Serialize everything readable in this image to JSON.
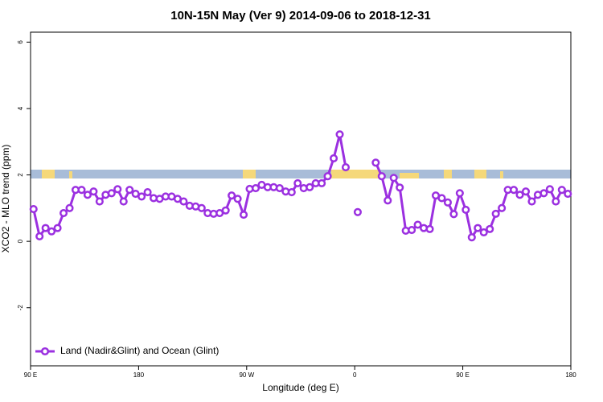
{
  "chart_data": {
    "type": "line",
    "title": "10N-15N May (Ver 9)   2014-09-06 to 2018-12-31",
    "xlabel": "Longitude (deg E)",
    "ylabel": "XCO2 - MLO trend (ppm)",
    "xlim": [
      90,
      540
    ],
    "xticks": [
      {
        "value": 90,
        "label": "90 E"
      },
      180,
      {
        "value": 270,
        "label": "90 W"
      },
      {
        "value": 360,
        "label": "0"
      },
      {
        "value": 450,
        "label": "90 E"
      },
      {
        "value": 540,
        "label": "180"
      }
    ],
    "ylim": [
      -3.75,
      6.3
    ],
    "yticks": [
      -2,
      0,
      2,
      4,
      6
    ],
    "legend": "bottom-left",
    "x": [
      92.5,
      97.5,
      102.5,
      107.5,
      112.5,
      117.5,
      122.5,
      127.5,
      132.5,
      137.5,
      142.5,
      147.5,
      152.5,
      157.5,
      162.5,
      167.5,
      172.5,
      177.5,
      182.5,
      187.5,
      192.5,
      197.5,
      202.5,
      207.5,
      212.5,
      217.5,
      222.5,
      227.5,
      232.5,
      237.5,
      242.5,
      247.5,
      252.5,
      257.5,
      262.5,
      267.5,
      272.5,
      277.5,
      282.5,
      287.5,
      292.5,
      297.5,
      302.5,
      307.5,
      312.5,
      317.5,
      322.5,
      327.5,
      332.5,
      337.5,
      342.5,
      347.5,
      352.5,
      357.5,
      362.5,
      367.5,
      372.5,
      377.5,
      382.5,
      387.5,
      392.5,
      397.5,
      402.5,
      407.5,
      412.5,
      417.5,
      422.5,
      427.5,
      432.5,
      437.5,
      442.5,
      447.5,
      452.5,
      457.5,
      462.5,
      467.5,
      472.5,
      477.5,
      482.5,
      487.5,
      492.5,
      497.5,
      502.5,
      507.5,
      512.5,
      517.5,
      522.5,
      527.5,
      532.5,
      537.5
    ],
    "series": [
      {
        "name": "Land (Nadir&Glint) and Ocean (Glint)",
        "color": "#9b30e0",
        "values": [
          0.97,
          0.15,
          0.4,
          0.3,
          0.4,
          0.85,
          1.0,
          1.55,
          1.55,
          1.4,
          1.5,
          1.2,
          1.4,
          1.45,
          1.57,
          1.2,
          1.55,
          1.43,
          1.35,
          1.48,
          1.3,
          1.28,
          1.35,
          1.35,
          1.28,
          1.2,
          1.07,
          1.05,
          1.0,
          0.85,
          0.83,
          0.85,
          0.93,
          1.38,
          1.28,
          0.8,
          1.58,
          1.6,
          1.7,
          1.63,
          1.63,
          1.6,
          1.5,
          1.48,
          1.75,
          1.6,
          1.63,
          1.75,
          1.75,
          1.96,
          2.5,
          3.22,
          2.23,
          null,
          0.88,
          null,
          null,
          2.37,
          1.96,
          1.23,
          1.91,
          1.62,
          0.32,
          0.34,
          0.5,
          0.4,
          0.37,
          1.38,
          1.3,
          1.17,
          0.82,
          1.45,
          0.95,
          0.12,
          0.4,
          0.27,
          0.37,
          0.83,
          1.0,
          1.55,
          1.55,
          1.4,
          1.5,
          1.2,
          1.4,
          1.45,
          1.57,
          1.2,
          1.55,
          1.43
        ]
      }
    ]
  }
}
